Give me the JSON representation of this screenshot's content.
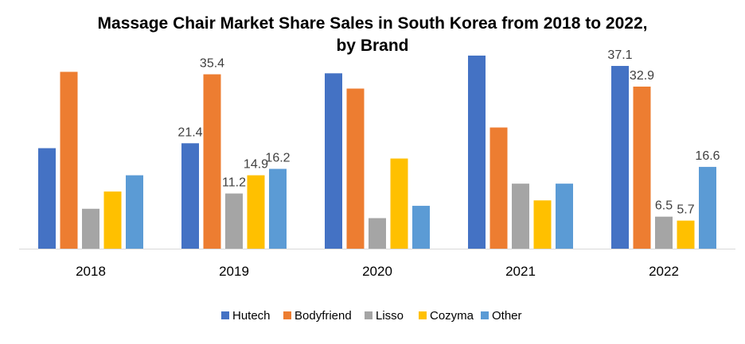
{
  "chart_data": {
    "type": "bar",
    "title_line1": "Massage Chair Market Share Sales in South Korea from 2018 to 2022,",
    "title_line2": "by Brand",
    "xlabel": "",
    "ylabel": "",
    "ylim": [
      0,
      40
    ],
    "grid": false,
    "legend_position": "bottom",
    "categories": [
      "2018",
      "2019",
      "2020",
      "2021",
      "2022"
    ],
    "series": [
      {
        "name": "Hutech",
        "color": "#4472C4",
        "values": [
          20.4,
          21.4,
          35.6,
          39.2,
          37.1
        ],
        "labels": [
          "",
          "21.4",
          "",
          "",
          "37.1"
        ]
      },
      {
        "name": "Bodyfriend",
        "color": "#ED7D31",
        "values": [
          35.9,
          35.4,
          32.5,
          24.6,
          32.9
        ],
        "labels": [
          "",
          "35.4",
          "",
          "",
          "32.9"
        ]
      },
      {
        "name": "Lisso",
        "color": "#A5A5A5",
        "values": [
          8.1,
          11.2,
          6.2,
          13.2,
          6.5
        ],
        "labels": [
          "",
          "11.2",
          "",
          "",
          "6.5"
        ]
      },
      {
        "name": "Cozyma",
        "color": "#FFC000",
        "values": [
          11.6,
          14.9,
          18.3,
          9.8,
          5.7
        ],
        "labels": [
          "",
          "14.9",
          "",
          "",
          "5.7"
        ]
      },
      {
        "name": "Other",
        "color": "#5B9BD5",
        "values": [
          14.9,
          16.2,
          8.7,
          13.2,
          16.6
        ],
        "labels": [
          "",
          "16.2",
          "",
          "",
          "16.6"
        ]
      }
    ]
  }
}
